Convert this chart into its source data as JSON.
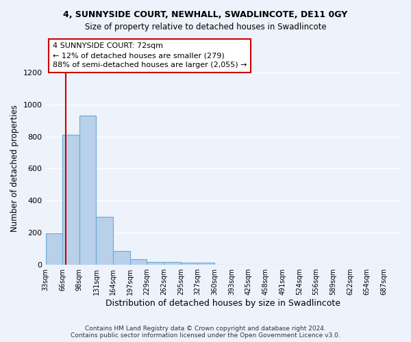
{
  "title1": "4, SUNNYSIDE COURT, NEWHALL, SWADLINCOTE, DE11 0GY",
  "title2": "Size of property relative to detached houses in Swadlincote",
  "xlabel": "Distribution of detached houses by size in Swadlincote",
  "ylabel": "Number of detached properties",
  "footnote": "Contains HM Land Registry data © Crown copyright and database right 2024.\nContains public sector information licensed under the Open Government Licence v3.0.",
  "bar_color": "#b8d0ea",
  "bar_edge_color": "#6aaad4",
  "background_color": "#edf2fb",
  "grid_color": "#ffffff",
  "bin_labels": [
    "33sqm",
    "66sqm",
    "98sqm",
    "131sqm",
    "164sqm",
    "197sqm",
    "229sqm",
    "262sqm",
    "295sqm",
    "327sqm",
    "360sqm",
    "393sqm",
    "425sqm",
    "458sqm",
    "491sqm",
    "524sqm",
    "556sqm",
    "589sqm",
    "622sqm",
    "654sqm",
    "687sqm"
  ],
  "bar_values": [
    195,
    810,
    930,
    300,
    85,
    35,
    20,
    18,
    12,
    12,
    0,
    0,
    0,
    0,
    0,
    0,
    0,
    0,
    0,
    0,
    0
  ],
  "bin_edges": [
    33,
    66,
    98,
    131,
    164,
    197,
    229,
    262,
    295,
    327,
    360,
    393,
    425,
    458,
    491,
    524,
    556,
    589,
    622,
    654,
    687
  ],
  "property_size": 72,
  "annotation_text": "4 SUNNYSIDE COURT: 72sqm\n← 12% of detached houses are smaller (279)\n88% of semi-detached houses are larger (2,055) →",
  "annotation_box_color": "#ffffff",
  "annotation_box_edge_color": "#cc0000",
  "red_line_color": "#cc0000",
  "ylim": [
    0,
    1200
  ],
  "yticks": [
    0,
    200,
    400,
    600,
    800,
    1000,
    1200
  ]
}
